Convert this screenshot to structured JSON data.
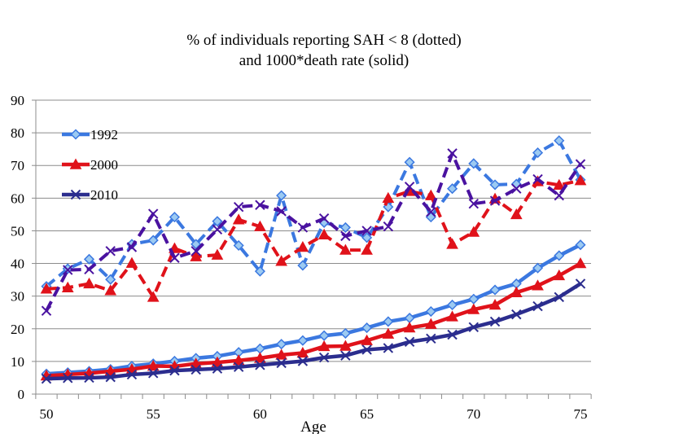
{
  "chart_data": {
    "type": "line",
    "title": [
      "% of individuals reporting SAH < 8 (dotted)",
      "and 1000*death rate (solid)"
    ],
    "xlabel": "Age",
    "ylabel": "",
    "xlim": [
      50,
      75
    ],
    "ylim": [
      0,
      90
    ],
    "x_ticks": [
      50,
      55,
      60,
      65,
      70,
      75
    ],
    "y_ticks": [
      0,
      10,
      20,
      30,
      40,
      50,
      60,
      70,
      80,
      90
    ],
    "grid": true,
    "legend": {
      "position": "top-left",
      "entries": [
        "1992",
        "2000",
        "2010"
      ]
    },
    "x": [
      50,
      51,
      52,
      53,
      54,
      55,
      56,
      57,
      58,
      59,
      60,
      61,
      62,
      63,
      64,
      65,
      66,
      67,
      68,
      69,
      70,
      71,
      72,
      73,
      74,
      75
    ],
    "series": [
      {
        "name": "1992",
        "style": "dotted",
        "measure": "% reporting SAH < 8",
        "color": "#3b78e0",
        "marker": "diamond",
        "marker_color": "#9ccaf2",
        "values": [
          33.0,
          38.4,
          41.3,
          35.1,
          45.9,
          47.1,
          54.2,
          45.9,
          52.9,
          45.5,
          37.6,
          60.8,
          39.4,
          52.5,
          51.0,
          47.9,
          57.3,
          71.0,
          54.2,
          62.9,
          70.6,
          64.1,
          64.3,
          73.9,
          77.6,
          65.6
        ]
      },
      {
        "name": "2000",
        "style": "dotted",
        "measure": "% reporting SAH < 8",
        "color": "#e0121a",
        "marker": "triangle",
        "marker_color": "#e0121a",
        "values": [
          32.2,
          32.6,
          33.8,
          31.7,
          40.1,
          29.7,
          44.6,
          42.1,
          42.6,
          53.4,
          51.3,
          40.7,
          45.0,
          48.8,
          44.1,
          44.1,
          60.0,
          62.1,
          60.8,
          45.9,
          49.6,
          59.8,
          55.0,
          65.1,
          64.0,
          65.4
        ]
      },
      {
        "name": "2010",
        "style": "dotted",
        "measure": "% reporting SAH < 8",
        "color": "#4a12a0",
        "marker": "x",
        "marker_color": "#4a12a0",
        "values": [
          25.5,
          38.0,
          38.2,
          43.8,
          45.0,
          55.2,
          41.7,
          43.8,
          50.4,
          57.3,
          57.9,
          56.0,
          51.0,
          53.8,
          48.4,
          50.0,
          51.3,
          63.5,
          55.8,
          73.7,
          58.3,
          59.2,
          62.9,
          65.8,
          60.8,
          70.4
        ]
      },
      {
        "name": "1992",
        "style": "solid",
        "measure": "1000*death rate",
        "color": "#3b78e0",
        "marker": "diamond",
        "marker_color": "#9ccaf2",
        "values": [
          6.2,
          6.6,
          7.0,
          7.6,
          8.6,
          9.3,
          10.1,
          11.0,
          11.6,
          12.8,
          13.9,
          15.3,
          16.4,
          17.9,
          18.6,
          20.3,
          22.2,
          23.3,
          25.3,
          27.3,
          29.1,
          31.9,
          33.8,
          38.6,
          42.4,
          45.7
        ]
      },
      {
        "name": "2000",
        "style": "solid",
        "measure": "1000*death rate",
        "color": "#e0121a",
        "marker": "triangle",
        "marker_color": "#e0121a",
        "values": [
          5.6,
          6.0,
          6.4,
          7.0,
          7.6,
          8.6,
          8.5,
          9.3,
          9.7,
          10.3,
          11.0,
          12.0,
          12.6,
          14.6,
          14.7,
          16.4,
          18.4,
          20.3,
          21.4,
          23.7,
          25.9,
          27.3,
          31.1,
          33.2,
          36.3,
          40.0
        ]
      },
      {
        "name": "2010",
        "style": "solid",
        "measure": "1000*death rate",
        "color": "#2b2d8e",
        "marker": "x",
        "marker_color": "#2b2d8e",
        "values": [
          4.7,
          4.9,
          5.0,
          5.2,
          6.0,
          6.4,
          7.2,
          7.5,
          7.8,
          8.3,
          8.9,
          9.5,
          10.1,
          11.2,
          11.8,
          13.6,
          14.1,
          16.0,
          17.0,
          18.2,
          20.5,
          22.2,
          24.4,
          26.9,
          29.7,
          33.8
        ]
      }
    ]
  }
}
